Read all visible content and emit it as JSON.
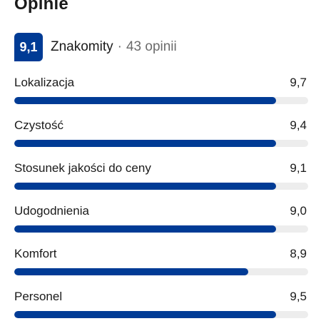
{
  "section": {
    "title": "Opinie"
  },
  "summary": {
    "score": "9,1",
    "label": "Znakomity",
    "separator": "·",
    "count_text": "43 opinii"
  },
  "ratings": [
    {
      "label": "Lokalizacja",
      "value": "9,7",
      "fill": 0.89
    },
    {
      "label": "Czystość",
      "value": "9,4",
      "fill": 0.89
    },
    {
      "label": "Stosunek jakości do ceny",
      "value": "9,1",
      "fill": 0.89
    },
    {
      "label": "Udogodnienia",
      "value": "9,0",
      "fill": 0.89
    },
    {
      "label": "Komfort",
      "value": "8,9",
      "fill": 0.795
    },
    {
      "label": "Personel",
      "value": "9,5",
      "fill": 0.89
    }
  ],
  "colors": {
    "accent": "#003b95",
    "track": "#ededed",
    "text": "#1a1a1a",
    "muted": "#6b6b6b"
  }
}
